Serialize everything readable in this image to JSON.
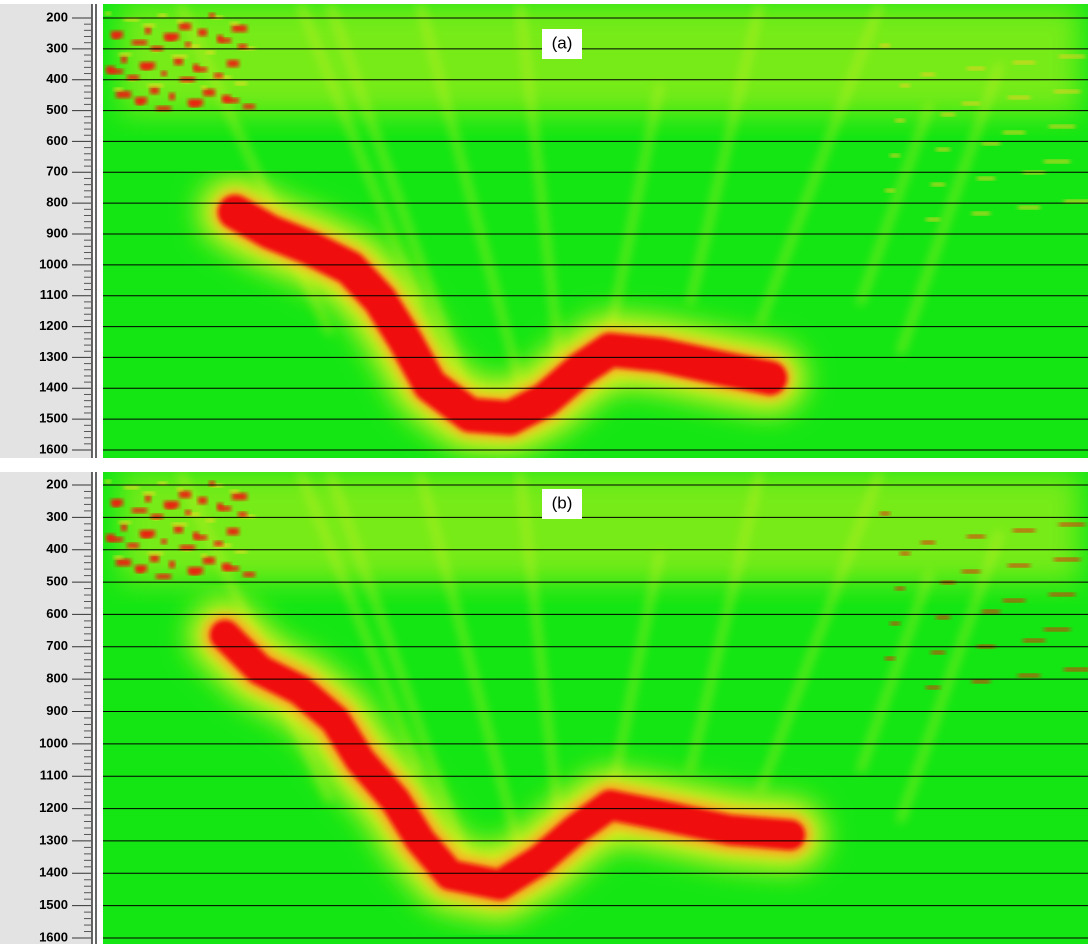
{
  "panels": [
    {
      "label": "(a)",
      "ticks": [
        200,
        300,
        400,
        500,
        600,
        700,
        800,
        900,
        1000,
        1100,
        1200,
        1300,
        1400,
        1500,
        1600
      ]
    },
    {
      "label": "(b)",
      "ticks": [
        200,
        300,
        400,
        500,
        600,
        700,
        800,
        900,
        1000,
        1100,
        1200,
        1300,
        1400,
        1500,
        1600
      ]
    }
  ]
}
